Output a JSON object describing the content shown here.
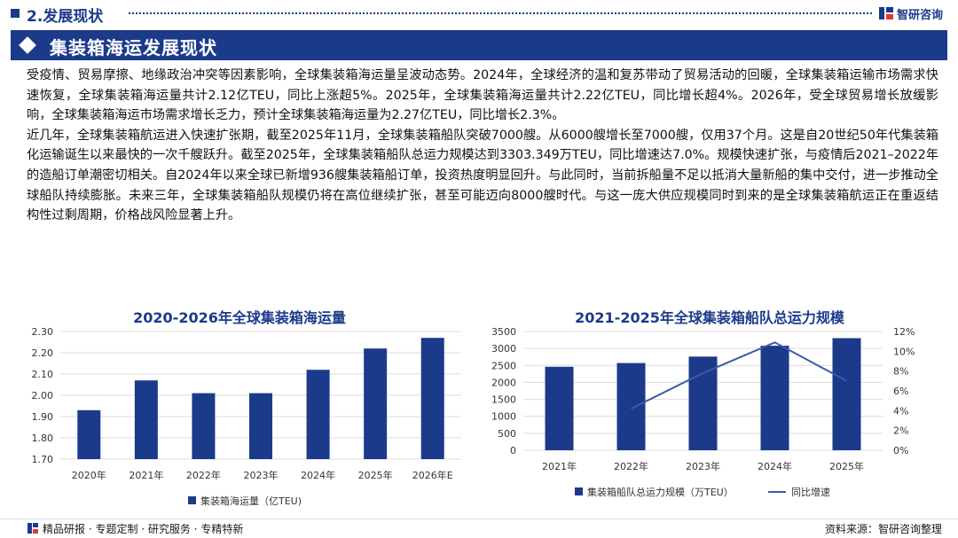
{
  "header": {
    "section_label": "2.发展现状",
    "brand_name": "智研咨询"
  },
  "banner": {
    "title": "集装箱海运发展现状"
  },
  "paragraphs": [
    "受疫情、贸易摩擦、地缘政治冲突等因素影响，全球集装箱海运量呈波动态势。2024年，全球经济的温和复苏带动了贸易活动的回暖，全球集装箱运输市场需求快速恢复，全球集装箱海运量共计2.12亿TEU，同比上涨超5%。2025年，全球集装箱海运量共计2.22亿TEU，同比增长超4%。2026年，受全球贸易增长放缓影响，全球集装箱海运市场需求增长乏力，预计全球集装箱海运量为2.27亿TEU，同比增长2.3%。",
    "近几年，全球集装箱航运进入快速扩张期，截至2025年11月，全球集装箱船队突破7000艘。从6000艘增长至7000艘，仅用37个月。这是自20世纪50年代集装箱化运输诞生以来最快的一次千艘跃升。截至2025年，全球集装箱船队总运力规模达到3303.349万TEU，同比增速达7.0%。规模快速扩张，与疫情后2021–2022年的造船订单潮密切相关。自2024年以来全球已新增936艘集装箱船订单，投资热度明显回升。与此同时，当前拆船量不足以抵消大量新船的集中交付，进一步推动全球船队持续膨胀。未来三年，全球集装箱船队规模仍将在高位继续扩张，甚至可能迈向8000艘时代。与这一庞大供应规模同时到来的是全球集装箱航运正在重返结构性过剩周期，价格战风险显著上升。"
  ],
  "chart_data": [
    {
      "type": "bar",
      "title": "2020-2026年全球集装箱海运量",
      "categories": [
        "2020年",
        "2021年",
        "2022年",
        "2023年",
        "2024年",
        "2025年",
        "2026年E"
      ],
      "series": [
        {
          "name": "集装箱海运量（亿TEU)",
          "values": [
            1.93,
            2.07,
            2.01,
            2.01,
            2.12,
            2.22,
            2.27
          ],
          "color": "#1b3a8a"
        }
      ],
      "ylim": [
        1.7,
        2.3
      ],
      "yticks": [
        "1.70",
        "1.80",
        "1.90",
        "2.00",
        "2.10",
        "2.20",
        "2.30"
      ],
      "grid": true,
      "legend": "bottom"
    },
    {
      "type": "bar+line",
      "title": "2021-2025年全球集装箱船队总运力规模",
      "categories": [
        "2021年",
        "2022年",
        "2023年",
        "2024年",
        "2025年"
      ],
      "series": [
        {
          "name": "集装箱船队总运力规模（万TEU）",
          "type": "bar",
          "axis": "left",
          "values": [
            2460,
            2570,
            2760,
            3080,
            3303.349
          ],
          "color": "#1b3a8a"
        },
        {
          "name": "同比增速",
          "type": "line",
          "axis": "right",
          "values": [
            null,
            4.2,
            7.8,
            10.9,
            7.0
          ],
          "color": "#3b5ba9"
        }
      ],
      "ylim_left": [
        0,
        3500
      ],
      "yticks_left": [
        "0",
        "500",
        "1000",
        "1500",
        "2000",
        "2500",
        "3000",
        "3500"
      ],
      "ylim_right": [
        0,
        12
      ],
      "yticks_right": [
        "0%",
        "2%",
        "4%",
        "6%",
        "8%",
        "10%",
        "12%"
      ],
      "grid": true,
      "legend": "bottom"
    }
  ],
  "footer": {
    "left_text": "精品研报 · 专题定制 · 研究服务 · 专精特新",
    "right_text": "资料来源：智研咨询整理"
  }
}
